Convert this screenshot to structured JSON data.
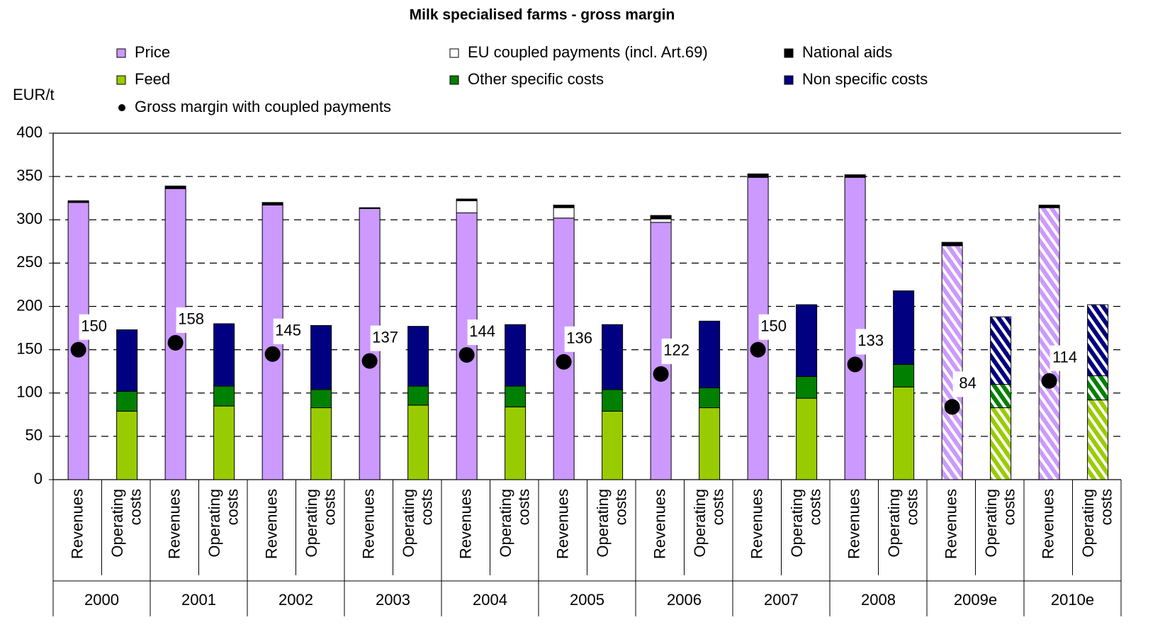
{
  "chart_data": {
    "type": "stacked_bar_pairs",
    "title": "Milk specialised farms - gross margin",
    "y_label": "EUR/t",
    "categories": [
      "2000",
      "2001",
      "2002",
      "2003",
      "2004",
      "2005",
      "2006",
      "2007",
      "2008",
      "2009e",
      "2010e"
    ],
    "hatched": [
      false,
      false,
      false,
      false,
      false,
      false,
      false,
      false,
      false,
      true,
      true
    ],
    "ylim": [
      0,
      400
    ],
    "yticks": [
      0,
      50,
      100,
      150,
      200,
      250,
      300,
      350,
      400
    ],
    "grid": true,
    "bars": [
      {
        "label": "Revenues",
        "series": [
          {
            "name": "Price",
            "color": "#cc99ff",
            "values": [
              320,
              336,
              317,
              313,
              308,
              302,
              297,
              349,
              349,
              270,
              314
            ]
          },
          {
            "name": "EU coupled payments (incl. Art.69)",
            "color": "#ffffff",
            "values": [
              0,
              0,
              0,
              0,
              14,
              12,
              4,
              0,
              0,
              0,
              0
            ]
          },
          {
            "name": "National aids",
            "color": "#000000",
            "values": [
              2,
              3,
              3,
              1,
              2,
              3,
              4,
              4,
              3,
              4,
              3
            ]
          }
        ]
      },
      {
        "label": "Operating costs",
        "series": [
          {
            "name": "Feed",
            "color": "#99cc00",
            "values": [
              79,
              85,
              83,
              86,
              84,
              79,
              83,
              94,
              107,
              83,
              92
            ]
          },
          {
            "name": "Other specific costs",
            "color": "#008000",
            "values": [
              23,
              23,
              21,
              22,
              24,
              25,
              23,
              25,
              26,
              27,
              28
            ]
          },
          {
            "name": "Non specific costs",
            "color": "#000080",
            "values": [
              71,
              72,
              74,
              69,
              71,
              75,
              77,
              83,
              85,
              78,
              82
            ]
          }
        ]
      }
    ],
    "marker": {
      "name": "Gross margin with coupled payments",
      "color": "#000000",
      "values": [
        150,
        158,
        145,
        137,
        144,
        136,
        122,
        150,
        133,
        84,
        114
      ]
    }
  }
}
